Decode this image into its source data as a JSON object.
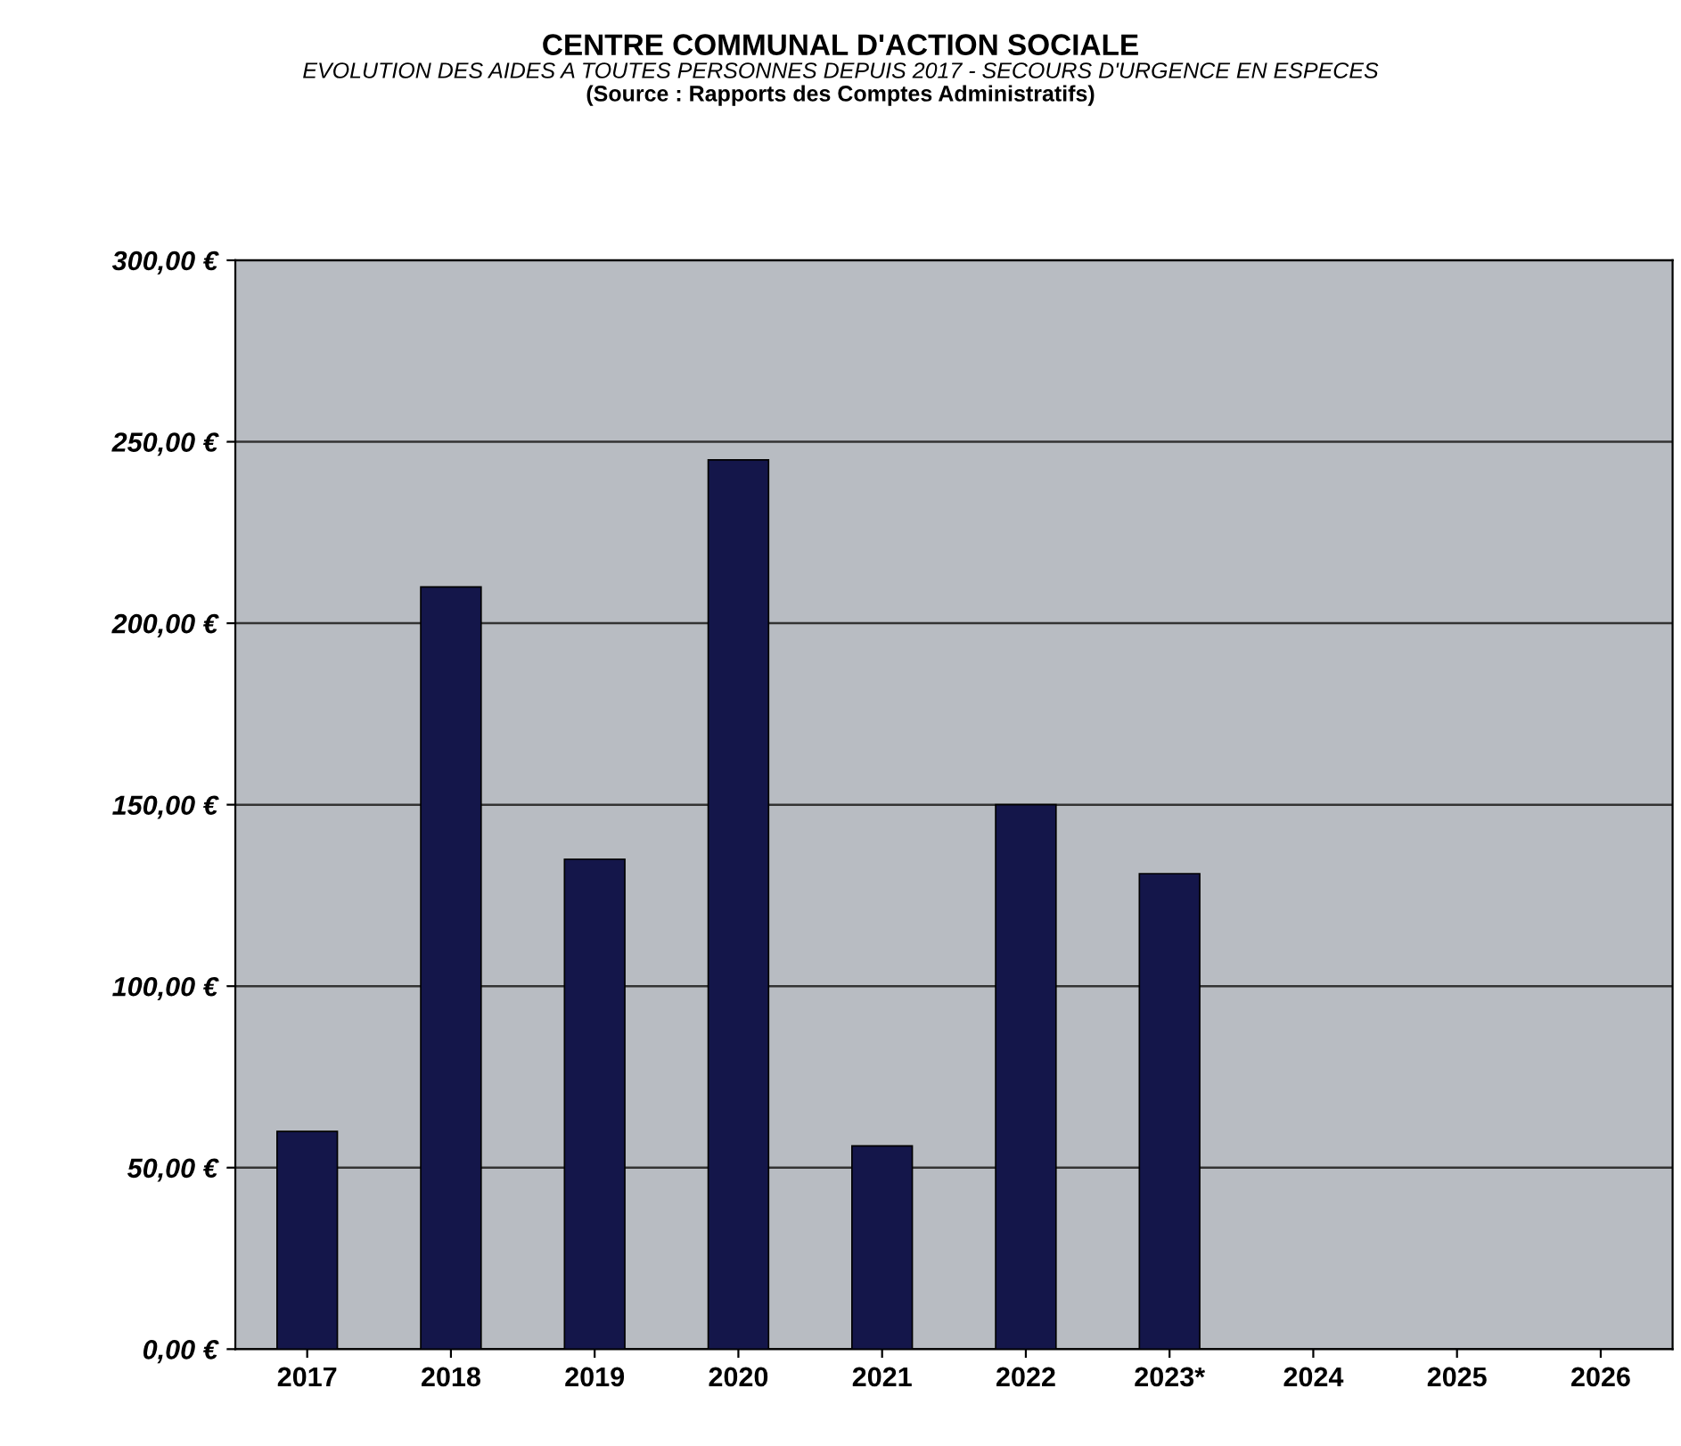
{
  "chart_data": {
    "type": "bar",
    "title": "CENTRE COMMUNAL D'ACTION SOCIALE",
    "subtitle": "EVOLUTION DES AIDES A TOUTES PERSONNES DEPUIS 2017 - SECOURS D'URGENCE EN ESPECES",
    "annotations": [
      "(Source : Rapports des Comptes Administratifs)"
    ],
    "categories": [
      "2017",
      "2018",
      "2019",
      "2020",
      "2021",
      "2022",
      "2023*",
      "2024",
      "2025",
      "2026"
    ],
    "values": [
      60,
      210,
      135,
      245,
      56,
      150,
      131,
      null,
      null,
      null
    ],
    "color": "#14164a",
    "ylim": [
      0,
      300
    ],
    "yticks": [
      {
        "value": 0,
        "label": "0,00 €"
      },
      {
        "value": 50,
        "label": "50,00 €"
      },
      {
        "value": 100,
        "label": "100,00 €"
      },
      {
        "value": 150,
        "label": "150,00 €"
      },
      {
        "value": 200,
        "label": "200,00 €"
      },
      {
        "value": 250,
        "label": "250,00 €"
      },
      {
        "value": 300,
        "label": "300,00 €"
      }
    ],
    "grid": "y"
  }
}
